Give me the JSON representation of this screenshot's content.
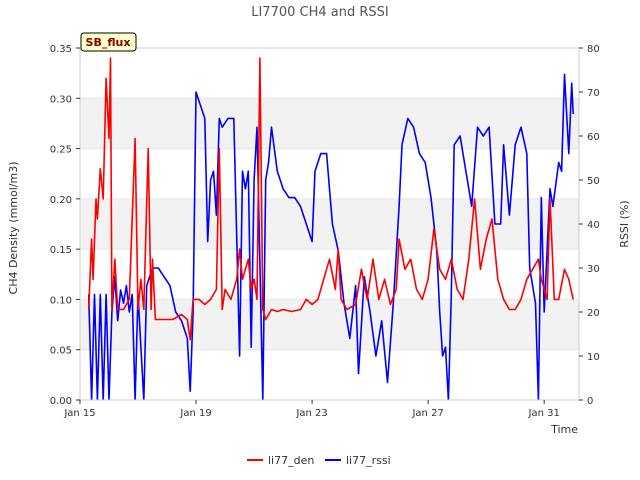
{
  "chart_data": {
    "type": "line",
    "title": "LI7700 CH4 and RSSI",
    "badge": "SB_flux",
    "xlabel": "Time",
    "ylabel_left": "CH4 Density (mmol/m3)",
    "ylabel_right": "RSSI (%)",
    "x_start_day": 15,
    "x_end_day": 32.2,
    "x_ticks": [
      {
        "day": 15,
        "label": "Jan 15"
      },
      {
        "day": 19,
        "label": "Jan 19"
      },
      {
        "day": 23,
        "label": "Jan 23"
      },
      {
        "day": 27,
        "label": "Jan 27"
      },
      {
        "day": 31,
        "label": "Jan 31"
      }
    ],
    "ylim_left": [
      0,
      0.35
    ],
    "ylim_right": [
      0,
      80
    ],
    "yticks_left": [
      "0.00",
      "0.05",
      "0.10",
      "0.15",
      "0.20",
      "0.25",
      "0.30",
      "0.35"
    ],
    "yticks_right": [
      "0",
      "10",
      "20",
      "30",
      "40",
      "50",
      "60",
      "70",
      "80"
    ],
    "colors": {
      "den": "#ff0000",
      "rssi": "#0000ff",
      "band": "#f2f2f2",
      "badge_bg": "#ffffcc",
      "badge_text": "#8b0000"
    },
    "series": [
      {
        "name": "li77_den",
        "axis": "left",
        "color": "#ff0000",
        "points": [
          [
            15.3,
            0.09
          ],
          [
            15.4,
            0.16
          ],
          [
            15.45,
            0.12
          ],
          [
            15.55,
            0.2
          ],
          [
            15.6,
            0.18
          ],
          [
            15.7,
            0.23
          ],
          [
            15.8,
            0.2
          ],
          [
            15.9,
            0.32
          ],
          [
            16.0,
            0.26
          ],
          [
            16.05,
            0.34
          ],
          [
            16.1,
            0.09
          ],
          [
            16.2,
            0.14
          ],
          [
            16.3,
            0.09
          ],
          [
            16.5,
            0.09
          ],
          [
            16.7,
            0.1
          ],
          [
            16.9,
            0.26
          ],
          [
            17.0,
            0.09
          ],
          [
            17.1,
            0.12
          ],
          [
            17.2,
            0.09
          ],
          [
            17.35,
            0.25
          ],
          [
            17.45,
            0.09
          ],
          [
            17.5,
            0.14
          ],
          [
            17.6,
            0.08
          ],
          [
            17.9,
            0.08
          ],
          [
            18.2,
            0.08
          ],
          [
            18.5,
            0.085
          ],
          [
            18.7,
            0.08
          ],
          [
            18.8,
            0.06
          ],
          [
            18.9,
            0.1
          ],
          [
            19.1,
            0.1
          ],
          [
            19.3,
            0.095
          ],
          [
            19.5,
            0.1
          ],
          [
            19.7,
            0.11
          ],
          [
            19.8,
            0.25
          ],
          [
            19.9,
            0.09
          ],
          [
            20.0,
            0.11
          ],
          [
            20.2,
            0.1
          ],
          [
            20.4,
            0.12
          ],
          [
            20.5,
            0.15
          ],
          [
            20.6,
            0.12
          ],
          [
            20.8,
            0.14
          ],
          [
            20.9,
            0.11
          ],
          [
            21.0,
            0.12
          ],
          [
            21.1,
            0.1
          ],
          [
            21.2,
            0.34
          ],
          [
            21.3,
            0.09
          ],
          [
            21.4,
            0.08
          ],
          [
            21.6,
            0.09
          ],
          [
            21.8,
            0.088
          ],
          [
            22.0,
            0.09
          ],
          [
            22.3,
            0.088
          ],
          [
            22.6,
            0.09
          ],
          [
            22.8,
            0.1
          ],
          [
            23.0,
            0.095
          ],
          [
            23.2,
            0.1
          ],
          [
            23.4,
            0.12
          ],
          [
            23.6,
            0.14
          ],
          [
            23.8,
            0.11
          ],
          [
            23.9,
            0.15
          ],
          [
            24.0,
            0.1
          ],
          [
            24.2,
            0.09
          ],
          [
            24.5,
            0.095
          ],
          [
            24.7,
            0.13
          ],
          [
            24.9,
            0.1
          ],
          [
            25.1,
            0.14
          ],
          [
            25.3,
            0.1
          ],
          [
            25.5,
            0.12
          ],
          [
            25.7,
            0.095
          ],
          [
            25.9,
            0.11
          ],
          [
            26.0,
            0.16
          ],
          [
            26.2,
            0.13
          ],
          [
            26.4,
            0.14
          ],
          [
            26.6,
            0.11
          ],
          [
            26.8,
            0.1
          ],
          [
            27.0,
            0.12
          ],
          [
            27.2,
            0.17
          ],
          [
            27.4,
            0.13
          ],
          [
            27.6,
            0.12
          ],
          [
            27.8,
            0.14
          ],
          [
            28.0,
            0.11
          ],
          [
            28.2,
            0.1
          ],
          [
            28.4,
            0.14
          ],
          [
            28.6,
            0.2
          ],
          [
            28.8,
            0.13
          ],
          [
            29.0,
            0.16
          ],
          [
            29.2,
            0.18
          ],
          [
            29.4,
            0.12
          ],
          [
            29.6,
            0.1
          ],
          [
            29.8,
            0.09
          ],
          [
            30.0,
            0.09
          ],
          [
            30.2,
            0.1
          ],
          [
            30.4,
            0.12
          ],
          [
            30.6,
            0.13
          ],
          [
            30.8,
            0.14
          ],
          [
            30.9,
            0.12
          ],
          [
            31.1,
            0.1
          ],
          [
            31.2,
            0.2
          ],
          [
            31.35,
            0.1
          ],
          [
            31.5,
            0.1
          ],
          [
            31.7,
            0.13
          ],
          [
            31.85,
            0.12
          ],
          [
            32.0,
            0.1
          ]
        ]
      },
      {
        "name": "li77_rssi",
        "axis": "right",
        "color": "#0000ff",
        "points": [
          [
            15.3,
            24
          ],
          [
            15.4,
            0
          ],
          [
            15.5,
            24
          ],
          [
            15.6,
            0
          ],
          [
            15.7,
            24
          ],
          [
            15.8,
            0
          ],
          [
            15.9,
            24
          ],
          [
            16.0,
            0
          ],
          [
            16.1,
            20
          ],
          [
            16.2,
            28
          ],
          [
            16.3,
            18
          ],
          [
            16.4,
            25
          ],
          [
            16.5,
            22
          ],
          [
            16.6,
            26
          ],
          [
            16.7,
            20
          ],
          [
            16.8,
            24
          ],
          [
            16.9,
            0
          ],
          [
            17.0,
            24
          ],
          [
            17.2,
            0
          ],
          [
            17.3,
            26
          ],
          [
            17.5,
            30
          ],
          [
            17.7,
            30
          ],
          [
            17.9,
            28
          ],
          [
            18.1,
            26
          ],
          [
            18.3,
            20
          ],
          [
            18.5,
            18
          ],
          [
            18.7,
            14
          ],
          [
            18.8,
            2
          ],
          [
            18.9,
            20
          ],
          [
            19.0,
            70
          ],
          [
            19.1,
            68
          ],
          [
            19.3,
            64
          ],
          [
            19.4,
            36
          ],
          [
            19.5,
            50
          ],
          [
            19.6,
            52
          ],
          [
            19.7,
            42
          ],
          [
            19.8,
            64
          ],
          [
            19.9,
            62
          ],
          [
            20.1,
            64
          ],
          [
            20.3,
            64
          ],
          [
            20.5,
            10
          ],
          [
            20.6,
            52
          ],
          [
            20.7,
            48
          ],
          [
            20.8,
            52
          ],
          [
            20.9,
            12
          ],
          [
            21.0,
            50
          ],
          [
            21.1,
            62
          ],
          [
            21.3,
            0
          ],
          [
            21.4,
            50
          ],
          [
            21.5,
            54
          ],
          [
            21.6,
            62
          ],
          [
            21.8,
            52
          ],
          [
            22.0,
            48
          ],
          [
            22.2,
            46
          ],
          [
            22.4,
            46
          ],
          [
            22.6,
            44
          ],
          [
            22.8,
            40
          ],
          [
            23.0,
            36
          ],
          [
            23.1,
            52
          ],
          [
            23.3,
            56
          ],
          [
            23.5,
            56
          ],
          [
            23.7,
            40
          ],
          [
            23.9,
            34
          ],
          [
            24.1,
            22
          ],
          [
            24.3,
            14
          ],
          [
            24.5,
            26
          ],
          [
            24.6,
            6
          ],
          [
            24.8,
            28
          ],
          [
            25.0,
            20
          ],
          [
            25.2,
            10
          ],
          [
            25.4,
            18
          ],
          [
            25.6,
            4
          ],
          [
            25.8,
            22
          ],
          [
            26.0,
            44
          ],
          [
            26.1,
            58
          ],
          [
            26.3,
            64
          ],
          [
            26.5,
            62
          ],
          [
            26.7,
            56
          ],
          [
            26.9,
            54
          ],
          [
            27.1,
            46
          ],
          [
            27.3,
            34
          ],
          [
            27.4,
            20
          ],
          [
            27.5,
            10
          ],
          [
            27.6,
            12
          ],
          [
            27.7,
            0
          ],
          [
            27.8,
            24
          ],
          [
            27.9,
            58
          ],
          [
            28.1,
            60
          ],
          [
            28.3,
            52
          ],
          [
            28.5,
            44
          ],
          [
            28.7,
            62
          ],
          [
            28.9,
            60
          ],
          [
            29.1,
            62
          ],
          [
            29.3,
            40
          ],
          [
            29.5,
            40
          ],
          [
            29.6,
            58
          ],
          [
            29.8,
            42
          ],
          [
            30.0,
            58
          ],
          [
            30.2,
            62
          ],
          [
            30.4,
            56
          ],
          [
            30.5,
            30
          ],
          [
            30.7,
            22
          ],
          [
            30.8,
            0
          ],
          [
            30.9,
            46
          ],
          [
            31.0,
            20
          ],
          [
            31.2,
            48
          ],
          [
            31.3,
            44
          ],
          [
            31.5,
            54
          ],
          [
            31.6,
            52
          ],
          [
            31.7,
            74
          ],
          [
            31.85,
            56
          ],
          [
            31.95,
            72
          ],
          [
            32.0,
            65
          ]
        ]
      }
    ]
  }
}
